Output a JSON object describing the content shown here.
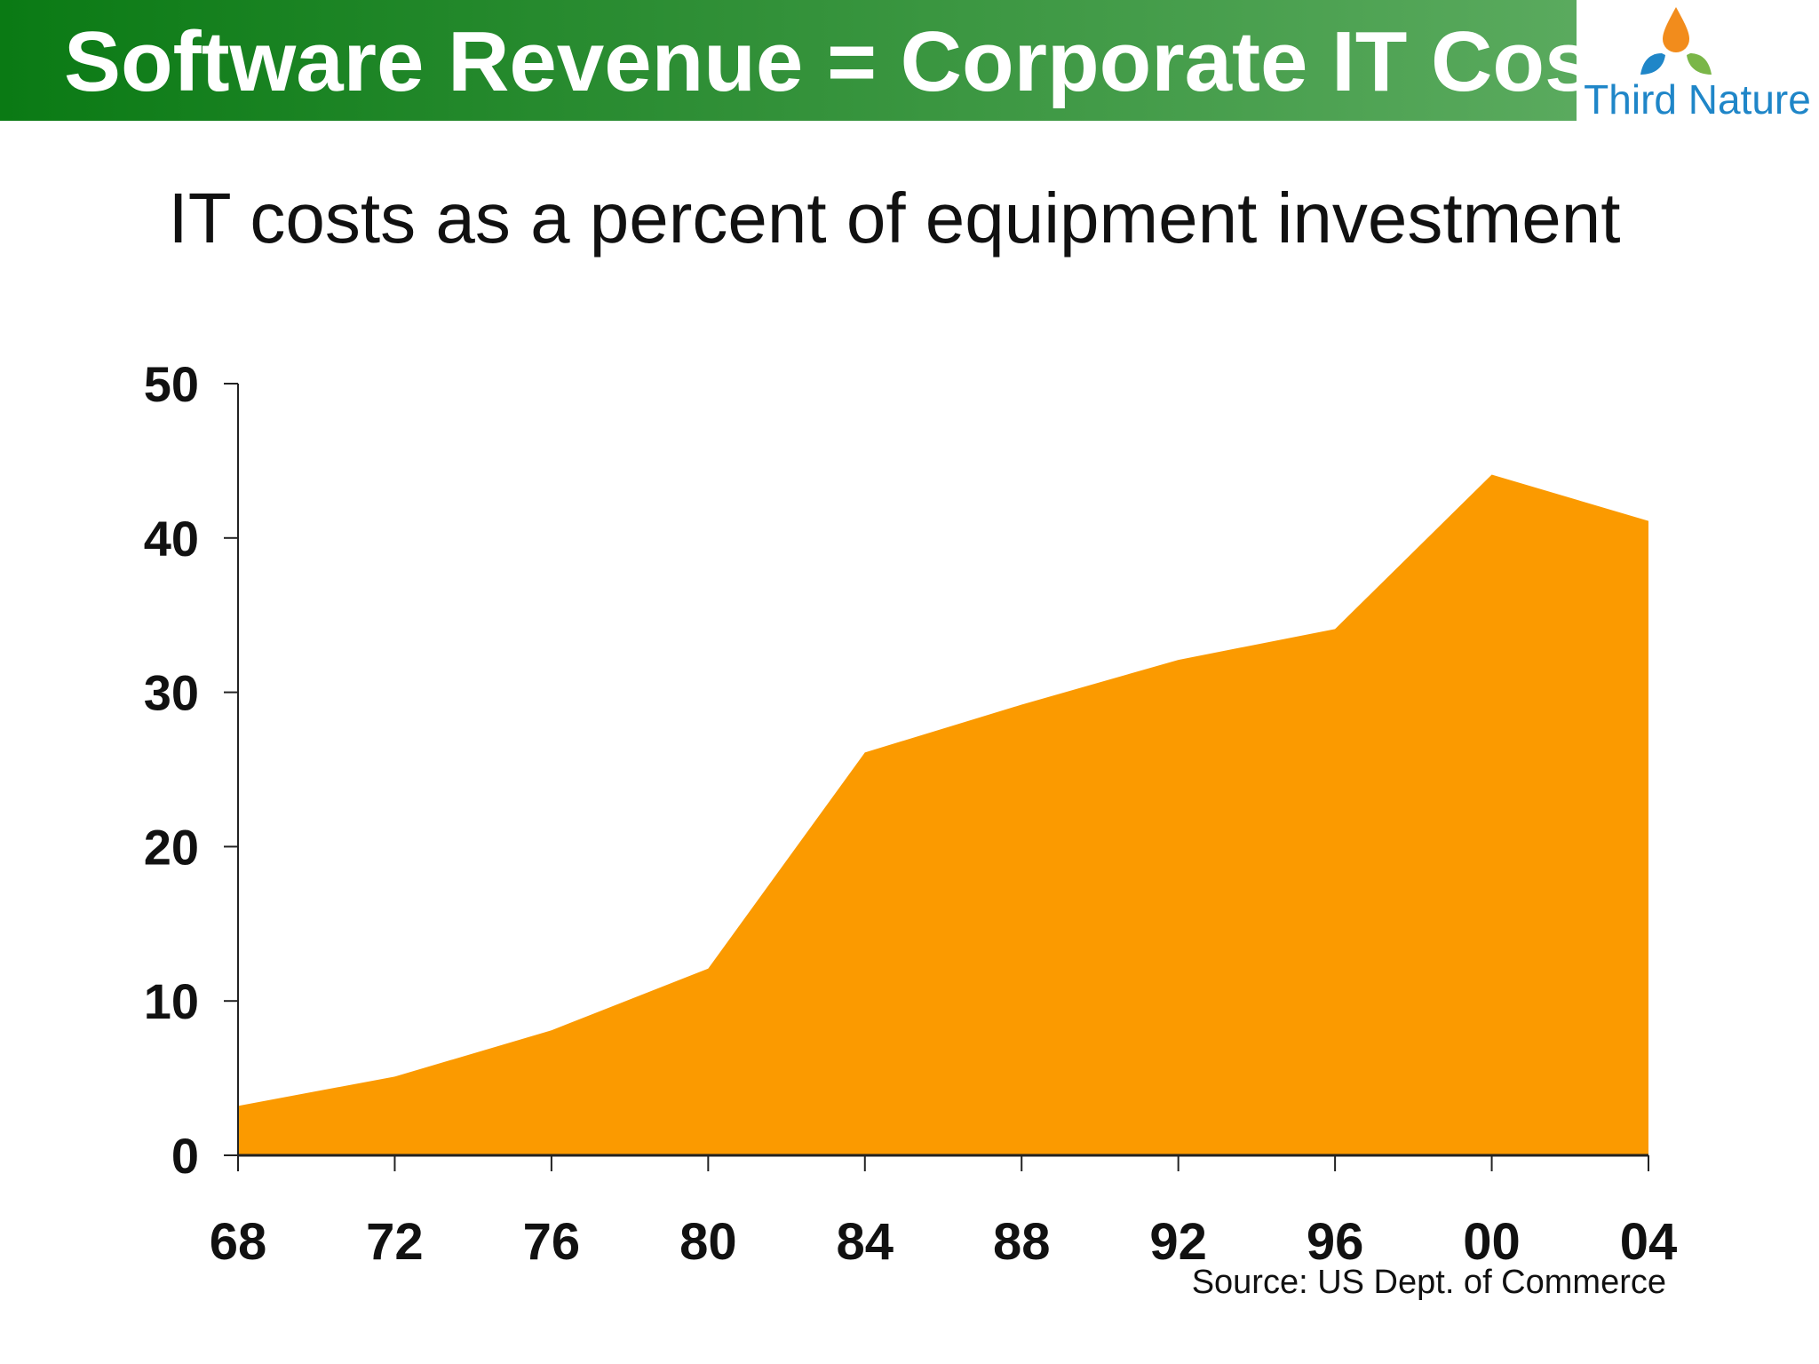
{
  "header": {
    "title": "Software Revenue = Corporate IT Cost",
    "logo_text": "Third Nature"
  },
  "colors": {
    "header_start": "#0a7a14",
    "header_end": "#5aaa5e",
    "area_fill": "#fb9a00",
    "axis": "#222222",
    "logo_text": "#1f86c8"
  },
  "chart_data": {
    "type": "area",
    "title": "IT costs as a percent of equipment investment",
    "xlabel": "",
    "ylabel": "",
    "categories": [
      "68",
      "72",
      "76",
      "80",
      "84",
      "88",
      "92",
      "96",
      "00",
      "04"
    ],
    "x": [
      1968,
      1972,
      1976,
      1980,
      1984,
      1988,
      1992,
      1996,
      2000,
      2004
    ],
    "series": [
      {
        "values": [
          3.2,
          5.1,
          8.1,
          12.1,
          26.1,
          29.2,
          32.1,
          34.1,
          44.1,
          41.1
        ]
      }
    ],
    "ylim": [
      0,
      50
    ],
    "yticks": [
      0,
      10,
      20,
      30,
      40,
      50
    ],
    "grid": false,
    "legend": "none",
    "source": "Source: US Dept. of Commerce"
  }
}
